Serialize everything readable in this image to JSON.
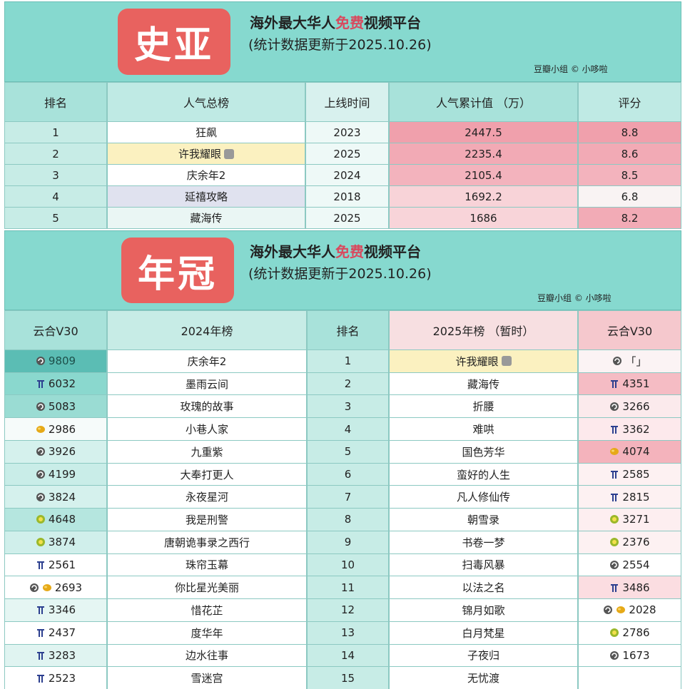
{
  "top": {
    "badge": "史亚",
    "title_parts": [
      "海外最大华人",
      "免费",
      "视频平台"
    ],
    "subtitle": "(统计数据更新于2025.10.26)",
    "credit": "豆瓣小组 © 小哆啦",
    "table": {
      "header": [
        "排名",
        "人气总榜",
        "上线时间",
        "人气累计值 （万）",
        "评分"
      ],
      "rows": [
        [
          1,
          "狂飙",
          2023,
          2447.5,
          8.8
        ],
        [
          2,
          "许我耀眼",
          2025,
          2235.4,
          8.6
        ],
        [
          3,
          "庆余年2",
          2024,
          2105.4,
          8.5
        ],
        [
          4,
          "延禧攻略",
          2018,
          1692.2,
          6.8
        ],
        [
          5,
          "藏海传",
          2025,
          1686,
          8.2
        ]
      ]
    }
  },
  "bottom": {
    "badge": "年冠",
    "title_parts": [
      "海外最大华人",
      "免费",
      "视频平台"
    ],
    "subtitle": "(统计数据更新于2025.10.26)",
    "credit": "豆瓣小组 © 小哆啦",
    "table": {
      "header": [
        "云合V30",
        "2024年榜",
        "排名",
        "2025年榜 （暂时）",
        "云合V30"
      ],
      "rows": [
        [
          9809,
          "庆余年2",
          1,
          "许我耀眼",
          "「」"
        ],
        [
          6032,
          "墨雨云间",
          2,
          "藏海传",
          4351
        ],
        [
          5083,
          "玫瑰的故事",
          3,
          "折腰",
          3266
        ],
        [
          2986,
          "小巷人家",
          4,
          "难哄",
          3362
        ],
        [
          3926,
          "九重紫",
          5,
          "国色芳华",
          4074
        ],
        [
          4199,
          "大奉打更人",
          6,
          "蛮好的人生",
          2585
        ],
        [
          3824,
          "永夜星河",
          7,
          "凡人修仙传",
          2815
        ],
        [
          4648,
          "我是刑警",
          8,
          "朝雪录",
          3271
        ],
        [
          3874,
          "唐朝诡事录之西行",
          9,
          "书卷一梦",
          2376
        ],
        [
          2561,
          "珠帘玉幕",
          10,
          "扫毒风暴",
          2554
        ],
        [
          2693,
          "你比星光美丽",
          11,
          "以法之名",
          3486
        ],
        [
          3346,
          "惜花芷",
          12,
          "锦月如歌",
          2028
        ],
        [
          2437,
          "度华年",
          13,
          "白月梵星",
          2786
        ],
        [
          3283,
          "边水往事",
          14,
          "子夜归",
          1673
        ],
        [
          2523,
          "雪迷宫",
          15,
          "无忧渡",
          null
        ]
      ]
    }
  }
}
